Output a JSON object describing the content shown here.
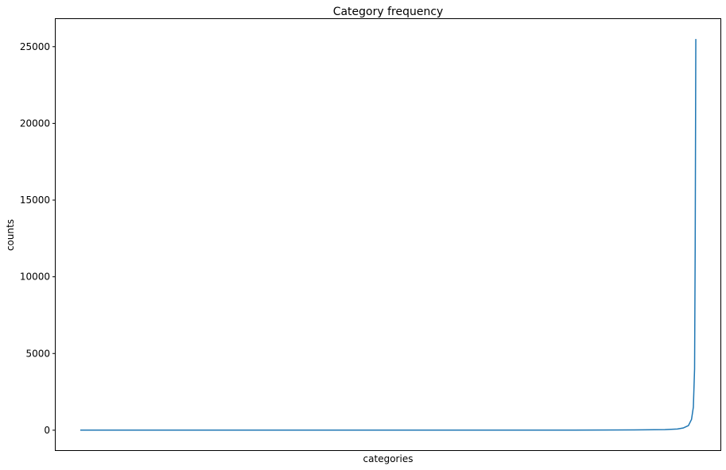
{
  "chart_data": {
    "type": "line",
    "title": "Category frequency",
    "xlabel": "categories",
    "ylabel": "counts",
    "ylim": [
      -1300,
      26800
    ],
    "xlim": [
      -40,
      1040
    ],
    "x_ticks_shown": false,
    "y_ticks": [
      0,
      5000,
      10000,
      15000,
      20000,
      25000
    ],
    "y_tick_labels": [
      "0",
      "5000",
      "10000",
      "15000",
      "20000",
      "25000"
    ],
    "grid": false,
    "legend": "none",
    "series": [
      {
        "color": "#1f77b4",
        "x": [
          0,
          100,
          200,
          300,
          400,
          500,
          600,
          700,
          800,
          900,
          950,
          970,
          980,
          988,
          993,
          996,
          998,
          999,
          1000
        ],
        "y": [
          5,
          5,
          5,
          5,
          5,
          5,
          5,
          5,
          8,
          20,
          40,
          80,
          150,
          300,
          700,
          1500,
          4000,
          12000,
          25500
        ]
      }
    ]
  }
}
